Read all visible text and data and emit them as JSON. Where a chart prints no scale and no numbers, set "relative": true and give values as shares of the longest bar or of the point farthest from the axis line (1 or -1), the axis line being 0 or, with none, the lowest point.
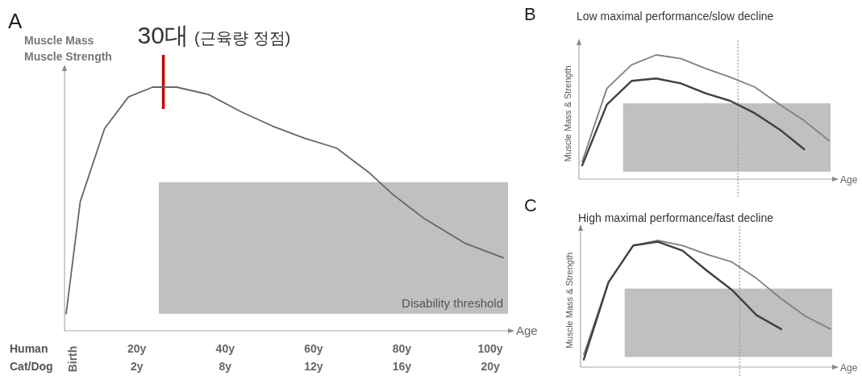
{
  "chart_data": [
    {
      "type": "line",
      "title": "A",
      "ylabel": "Muscle Mass\nMuscle Strength",
      "xlabel": "Age",
      "relative": true,
      "tick_labels": "x",
      "xlim": [
        4,
        104
      ],
      "xticks": [
        {
          "value": 20,
          "label": "20y"
        },
        {
          "value": 40,
          "label": "40y"
        },
        {
          "value": 60,
          "label": "60y"
        },
        {
          "value": 80,
          "label": "80y"
        },
        {
          "value": 100,
          "label": "100y"
        }
      ],
      "series": [
        {
          "color": "#666666",
          "x": [
            4,
            7.2,
            12.7,
            18.1,
            23.6,
            29,
            36.2,
            43.5,
            50.7,
            58,
            65.2,
            72.5,
            77.9,
            85.1,
            94.2,
            102.9
          ],
          "values": [
            0.07,
            0.53,
            0.83,
            0.96,
            1,
            1,
            0.97,
            0.9,
            0.84,
            0.79,
            0.75,
            0.65,
            0.56,
            0.46,
            0.36,
            0.3
          ]
        }
      ],
      "bands": [
        {
          "axis": "y",
          "from": 0.07,
          "to": 0.61,
          "label": "Disability threshold",
          "color": "#c0c0c2"
        }
      ],
      "ref_lines": [
        {
          "axis": "x",
          "value": 26,
          "label": "30대 (근육량 정점)",
          "color": "#c00000"
        }
      ],
      "annotations": [
        "Human",
        "Cat/Dog",
        "Birth",
        "2y",
        "8y",
        "12y",
        "16y",
        "20y"
      ]
    },
    {
      "type": "line",
      "title": "B",
      "subtitle": "Low maximal performance/slow decline",
      "ylabel": "Muscle Mass & Strength",
      "xlabel": "Age",
      "relative": true,
      "tick_labels": false,
      "categories": [
        null,
        null,
        null,
        null,
        null,
        null,
        null,
        null,
        null,
        null,
        null
      ],
      "series": [
        {
          "color": "#808080",
          "values": [
            0.14,
            0.73,
            0.92,
            1,
            0.97,
            0.89,
            0.82,
            0.74,
            0.6,
            0.47,
            0.31
          ]
        },
        {
          "color": "#404040",
          "values": [
            0.11,
            0.6,
            0.79,
            0.81,
            0.77,
            0.69,
            0.63,
            0.53,
            0.4,
            0.24,
            null
          ]
        }
      ],
      "bands": [
        {
          "axis": "y",
          "from": 0.06,
          "to": 0.61,
          "color": "#c0c0c2"
        }
      ]
    },
    {
      "type": "line",
      "title": "C",
      "subtitle": "High maximal performance/fast decline",
      "ylabel": "Muscle Mass & Strength",
      "xlabel": "Age",
      "relative": true,
      "tick_labels": false,
      "categories": [
        null,
        null,
        null,
        null,
        null,
        null,
        null,
        null,
        null,
        null,
        null
      ],
      "series": [
        {
          "color": "#808080",
          "values": [
            0.1,
            0.67,
            0.96,
            1,
            0.96,
            0.89,
            0.83,
            0.7,
            0.54,
            0.4,
            0.3
          ]
        },
        {
          "color": "#404040",
          "values": [
            0.06,
            0.67,
            0.96,
            0.99,
            0.92,
            0.76,
            0.61,
            0.41,
            0.3,
            null,
            null
          ]
        }
      ],
      "bands": [
        {
          "axis": "y",
          "from": 0.08,
          "to": 0.62,
          "color": "#c0c0c2"
        }
      ]
    }
  ]
}
